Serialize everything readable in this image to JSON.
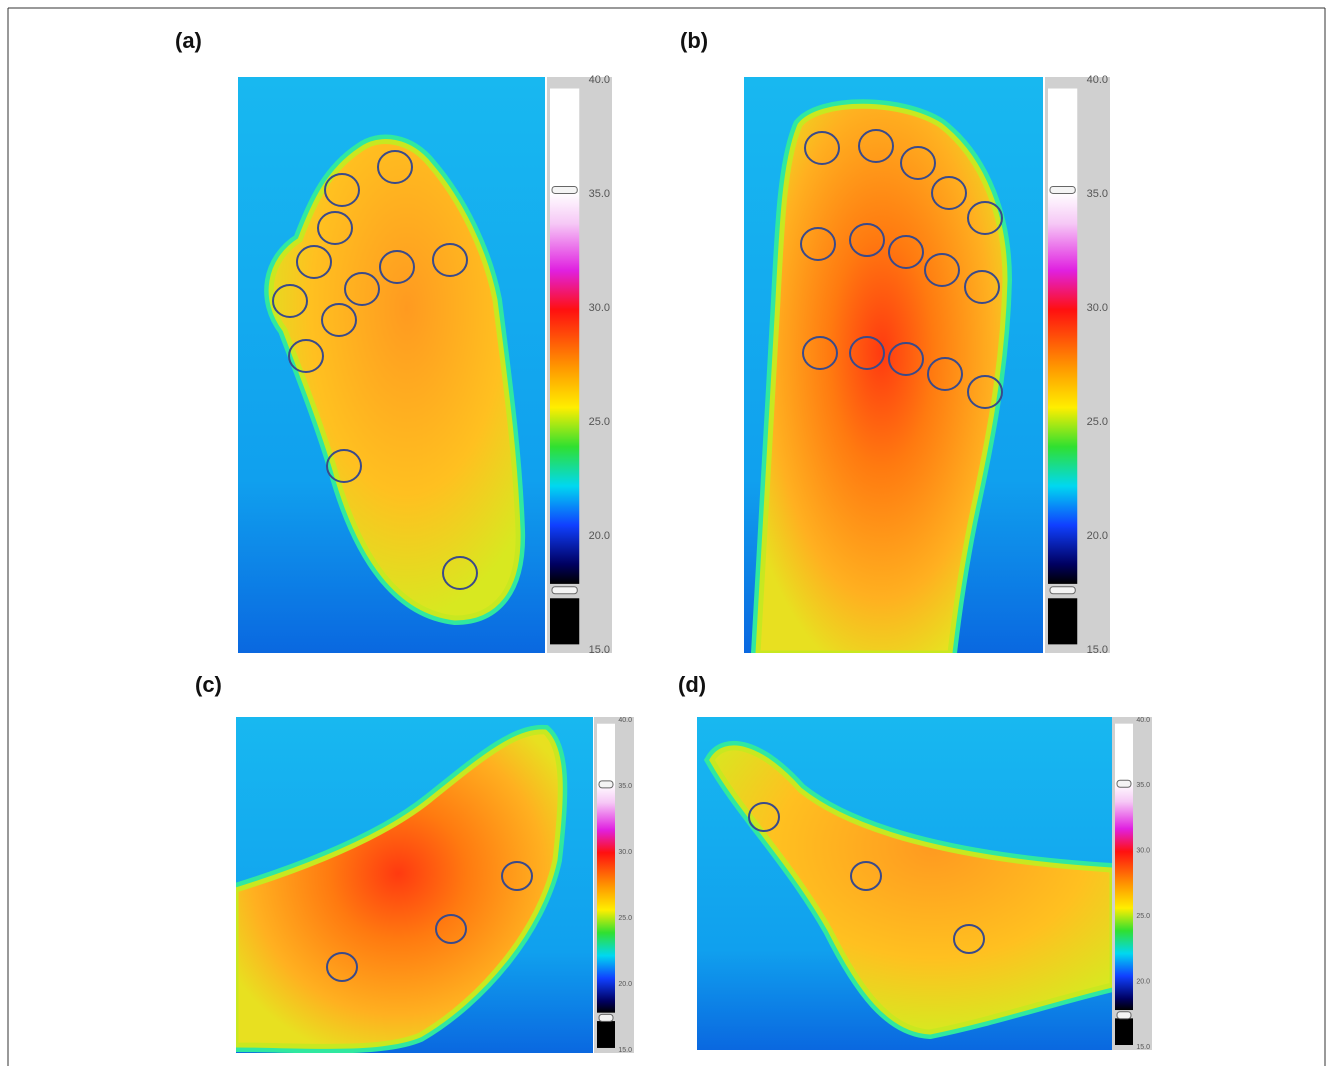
{
  "panels": [
    {
      "label": "(a)",
      "scale": [
        "40.0",
        "35.0",
        "30.0",
        "25.0",
        "20.0",
        "15.0"
      ]
    },
    {
      "label": "(b)",
      "scale": [
        "40.0",
        "35.0",
        "30.0",
        "25.0",
        "20.0",
        "15.0"
      ]
    },
    {
      "label": "(c)",
      "scale": [
        "40.0",
        "35.0",
        "30.0",
        "25.0",
        "20.0",
        "15.0"
      ]
    },
    {
      "label": "(d)",
      "scale": [
        "40.0",
        "35.0",
        "30.0",
        "25.0",
        "20.0",
        "15.0"
      ]
    }
  ]
}
